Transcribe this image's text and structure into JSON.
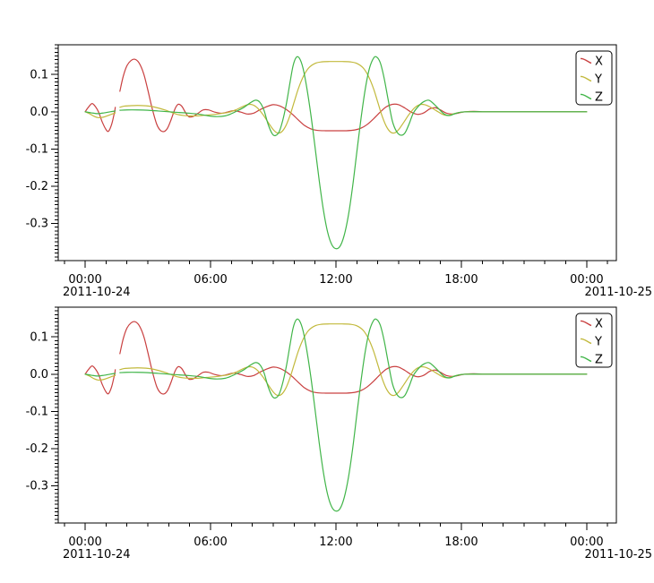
{
  "figure": {
    "background": "#ffffff",
    "axis_color": "#000000",
    "text_color": "#000000",
    "tick_font_size": 13,
    "legend_font_size": 13
  },
  "chart_data": {
    "type": "line",
    "subplots": [
      "top",
      "bottom"
    ],
    "subplots_identical": true,
    "x_unit": "hours since 2011-10-24 00:00",
    "xlim": [
      -1.29,
      25.42
    ],
    "ylim": [
      -0.4,
      0.18
    ],
    "x_major_tick_hours": [
      0,
      6,
      12,
      18,
      24
    ],
    "x_tick_labels": [
      "00:00",
      "06:00",
      "12:00",
      "18:00",
      "00:00"
    ],
    "x_minor_step_hours": 1,
    "y_tick_values": [
      0.1,
      0.0,
      -0.1,
      -0.2,
      -0.3
    ],
    "y_tick_labels": [
      "0.1",
      "0.0",
      "-0.1",
      "-0.2",
      "-0.3"
    ],
    "y_minor_step": 0.01,
    "date_label_left": "2011-10-24",
    "date_label_right": "2011-10-25",
    "grid": false,
    "legend": {
      "position": "upper right",
      "entries": [
        "X",
        "Y",
        "Z"
      ]
    },
    "data_gap_hours": [
      1.44,
      1.66
    ],
    "series": [
      {
        "name": "X",
        "color": "#c94040",
        "points": [
          [
            0,
            0
          ],
          [
            0.15,
            0.012
          ],
          [
            0.33,
            0.022
          ],
          [
            0.5,
            0.013
          ],
          [
            0.65,
            -0.002
          ],
          [
            0.82,
            -0.028
          ],
          [
            1.0,
            -0.048
          ],
          [
            1.12,
            -0.052
          ],
          [
            1.27,
            -0.033
          ],
          [
            1.4,
            -0.002
          ],
          [
            1.44,
            0.012
          ],
          [
            1.55,
            null
          ],
          [
            1.66,
            0.055
          ],
          [
            1.82,
            0.095
          ],
          [
            2.0,
            0.124
          ],
          [
            2.2,
            0.138
          ],
          [
            2.38,
            0.141
          ],
          [
            2.58,
            0.131
          ],
          [
            2.8,
            0.102
          ],
          [
            3.0,
            0.058
          ],
          [
            3.2,
            0.01
          ],
          [
            3.42,
            -0.033
          ],
          [
            3.6,
            -0.05
          ],
          [
            3.78,
            -0.053
          ],
          [
            3.95,
            -0.043
          ],
          [
            4.12,
            -0.02
          ],
          [
            4.3,
            0.008
          ],
          [
            4.45,
            0.02
          ],
          [
            4.62,
            0.015
          ],
          [
            4.8,
            -0.002
          ],
          [
            4.95,
            -0.013
          ],
          [
            5.15,
            -0.013
          ],
          [
            5.4,
            -0.004
          ],
          [
            5.65,
            0.005
          ],
          [
            5.9,
            0.005
          ],
          [
            6.2,
            -0.001
          ],
          [
            6.5,
            -0.004
          ],
          [
            6.8,
            -0.001
          ],
          [
            7.1,
            0.003
          ],
          [
            7.45,
            -0.001
          ],
          [
            7.75,
            -0.006
          ],
          [
            8.05,
            -0.004
          ],
          [
            8.35,
            0.005
          ],
          [
            8.7,
            0.014
          ],
          [
            9.0,
            0.019
          ],
          [
            9.3,
            0.016
          ],
          [
            9.6,
            0.007
          ],
          [
            9.9,
            -0.006
          ],
          [
            10.2,
            -0.022
          ],
          [
            10.5,
            -0.037
          ],
          [
            10.8,
            -0.046
          ],
          [
            11.1,
            -0.05
          ],
          [
            11.5,
            -0.051
          ],
          [
            12.0,
            -0.051
          ],
          [
            12.5,
            -0.051
          ],
          [
            12.9,
            -0.049
          ],
          [
            13.2,
            -0.044
          ],
          [
            13.5,
            -0.034
          ],
          [
            13.8,
            -0.019
          ],
          [
            14.1,
            -0.002
          ],
          [
            14.4,
            0.013
          ],
          [
            14.7,
            0.02
          ],
          [
            15.0,
            0.019
          ],
          [
            15.3,
            0.01
          ],
          [
            15.6,
            -0.001
          ],
          [
            15.9,
            -0.007
          ],
          [
            16.2,
            -0.003
          ],
          [
            16.5,
            0.008
          ],
          [
            16.75,
            0.011
          ],
          [
            17.0,
            0.005
          ],
          [
            17.3,
            -0.004
          ],
          [
            17.6,
            -0.006
          ],
          [
            17.9,
            -0.003
          ],
          [
            18.2,
            0
          ],
          [
            18.6,
            0.001
          ],
          [
            19.0,
            0
          ],
          [
            20,
            0
          ],
          [
            21,
            0
          ],
          [
            22,
            0
          ],
          [
            23,
            0
          ],
          [
            24,
            0
          ]
        ]
      },
      {
        "name": "Y",
        "color": "#c2b93c",
        "points": [
          [
            0,
            0
          ],
          [
            0.2,
            -0.005
          ],
          [
            0.42,
            -0.012
          ],
          [
            0.65,
            -0.016
          ],
          [
            0.9,
            -0.014
          ],
          [
            1.15,
            -0.009
          ],
          [
            1.35,
            -0.005
          ],
          [
            1.44,
            -0.003
          ],
          [
            1.55,
            null
          ],
          [
            1.66,
            0.012
          ],
          [
            1.85,
            0.015
          ],
          [
            2.1,
            0.016
          ],
          [
            2.5,
            0.017
          ],
          [
            2.9,
            0.016
          ],
          [
            3.2,
            0.014
          ],
          [
            3.5,
            0.01
          ],
          [
            3.8,
            0.005
          ],
          [
            4.1,
            -0.001
          ],
          [
            4.4,
            -0.007
          ],
          [
            4.7,
            -0.01
          ],
          [
            5.0,
            -0.011
          ],
          [
            5.4,
            -0.011
          ],
          [
            5.8,
            -0.009
          ],
          [
            6.2,
            -0.007
          ],
          [
            6.6,
            -0.004
          ],
          [
            6.9,
            -0.001
          ],
          [
            7.2,
            0.005
          ],
          [
            7.5,
            0.013
          ],
          [
            7.75,
            0.019
          ],
          [
            8.0,
            0.019
          ],
          [
            8.25,
            0.01
          ],
          [
            8.5,
            -0.007
          ],
          [
            8.75,
            -0.028
          ],
          [
            9.0,
            -0.048
          ],
          [
            9.2,
            -0.057
          ],
          [
            9.4,
            -0.054
          ],
          [
            9.6,
            -0.038
          ],
          [
            9.8,
            -0.01
          ],
          [
            10.0,
            0.026
          ],
          [
            10.2,
            0.062
          ],
          [
            10.45,
            0.096
          ],
          [
            10.7,
            0.118
          ],
          [
            11.0,
            0.13
          ],
          [
            11.3,
            0.134
          ],
          [
            11.7,
            0.135
          ],
          [
            12.0,
            0.135
          ],
          [
            12.3,
            0.135
          ],
          [
            12.7,
            0.134
          ],
          [
            13.0,
            0.13
          ],
          [
            13.3,
            0.118
          ],
          [
            13.55,
            0.096
          ],
          [
            13.8,
            0.062
          ],
          [
            14.0,
            0.026
          ],
          [
            14.2,
            -0.01
          ],
          [
            14.4,
            -0.038
          ],
          [
            14.6,
            -0.054
          ],
          [
            14.8,
            -0.057
          ],
          [
            15.0,
            -0.048
          ],
          [
            15.25,
            -0.028
          ],
          [
            15.5,
            -0.007
          ],
          [
            15.75,
            0.01
          ],
          [
            16.0,
            0.019
          ],
          [
            16.25,
            0.019
          ],
          [
            16.5,
            0.013
          ],
          [
            16.8,
            0.003
          ],
          [
            17.1,
            -0.007
          ],
          [
            17.35,
            -0.01
          ],
          [
            17.6,
            -0.006
          ],
          [
            17.9,
            -0.002
          ],
          [
            18.2,
            0
          ],
          [
            18.6,
            0
          ],
          [
            19,
            0
          ],
          [
            20,
            0
          ],
          [
            22,
            0
          ],
          [
            24,
            0
          ]
        ]
      },
      {
        "name": "Z",
        "color": "#41b549",
        "points": [
          [
            0,
            0
          ],
          [
            0.3,
            -0.003
          ],
          [
            0.6,
            -0.005
          ],
          [
            0.9,
            -0.003
          ],
          [
            1.2,
            0
          ],
          [
            1.44,
            0.002
          ],
          [
            1.55,
            null
          ],
          [
            1.66,
            0.004
          ],
          [
            2.0,
            0.005
          ],
          [
            2.5,
            0.005
          ],
          [
            3.0,
            0.004
          ],
          [
            3.5,
            0.002
          ],
          [
            4.0,
            0
          ],
          [
            4.5,
            -0.002
          ],
          [
            5.0,
            -0.004
          ],
          [
            5.5,
            -0.007
          ],
          [
            5.9,
            -0.011
          ],
          [
            6.3,
            -0.013
          ],
          [
            6.7,
            -0.011
          ],
          [
            7.0,
            -0.005
          ],
          [
            7.3,
            0.003
          ],
          [
            7.6,
            0.012
          ],
          [
            7.9,
            0.024
          ],
          [
            8.15,
            0.031
          ],
          [
            8.35,
            0.026
          ],
          [
            8.55,
            0.005
          ],
          [
            8.75,
            -0.033
          ],
          [
            8.95,
            -0.059
          ],
          [
            9.1,
            -0.064
          ],
          [
            9.28,
            -0.054
          ],
          [
            9.45,
            -0.024
          ],
          [
            9.63,
            0.022
          ],
          [
            9.8,
            0.078
          ],
          [
            9.95,
            0.124
          ],
          [
            10.1,
            0.146
          ],
          [
            10.25,
            0.144
          ],
          [
            10.42,
            0.118
          ],
          [
            10.6,
            0.066
          ],
          [
            10.8,
            -0.008
          ],
          [
            11.0,
            -0.095
          ],
          [
            11.2,
            -0.185
          ],
          [
            11.4,
            -0.264
          ],
          [
            11.6,
            -0.323
          ],
          [
            11.8,
            -0.357
          ],
          [
            12.0,
            -0.368
          ],
          [
            12.2,
            -0.361
          ],
          [
            12.4,
            -0.331
          ],
          [
            12.6,
            -0.277
          ],
          [
            12.8,
            -0.2
          ],
          [
            13.0,
            -0.108
          ],
          [
            13.2,
            -0.018
          ],
          [
            13.4,
            0.06
          ],
          [
            13.6,
            0.116
          ],
          [
            13.8,
            0.144
          ],
          [
            13.95,
            0.147
          ],
          [
            14.12,
            0.132
          ],
          [
            14.3,
            0.092
          ],
          [
            14.5,
            0.032
          ],
          [
            14.7,
            -0.025
          ],
          [
            14.9,
            -0.053
          ],
          [
            15.1,
            -0.063
          ],
          [
            15.3,
            -0.057
          ],
          [
            15.5,
            -0.033
          ],
          [
            15.7,
            -0.004
          ],
          [
            15.95,
            0.015
          ],
          [
            16.2,
            0.027
          ],
          [
            16.45,
            0.031
          ],
          [
            16.7,
            0.02
          ],
          [
            16.95,
            0.006
          ],
          [
            17.2,
            -0.007
          ],
          [
            17.45,
            -0.01
          ],
          [
            17.7,
            -0.005
          ],
          [
            18.0,
            -0.001
          ],
          [
            18.4,
            0
          ],
          [
            19,
            0
          ],
          [
            20,
            0
          ],
          [
            22,
            0
          ],
          [
            24,
            0
          ]
        ]
      }
    ]
  }
}
